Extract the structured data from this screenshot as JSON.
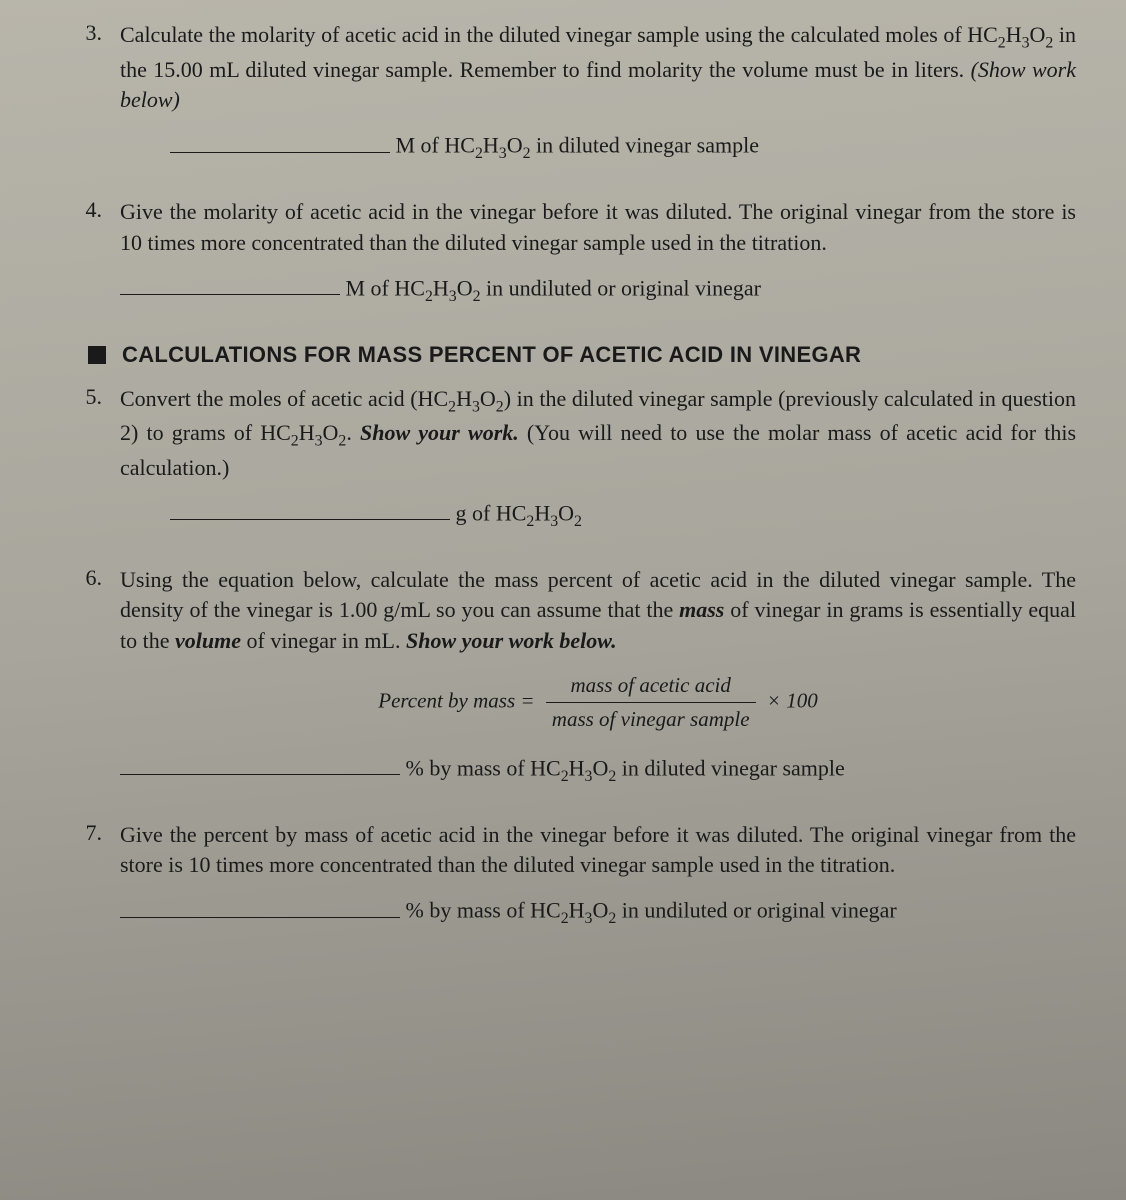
{
  "background_color": "#b0ada3",
  "text_color": "#1a1a1a",
  "body_font": "Minion Pro, Georgia, serif",
  "heading_font": "Helvetica Neue, Arial, sans-serif",
  "body_fontsize": 22,
  "q3": {
    "num": "3.",
    "text_a": "Calculate the molarity of acetic acid in the diluted vinegar sample using the calculated moles of HC",
    "text_b": " in the 15.00 mL diluted vinegar sample. Remember to find molarity the volume must be in liters. ",
    "show_work": "(Show work below)",
    "answer_label_a": " M of HC",
    "answer_label_b": " in diluted vinegar sample"
  },
  "q4": {
    "num": "4.",
    "text": "Give the molarity of acetic acid in the vinegar before it was diluted. The original vinegar from the store is 10 times more concentrated than the diluted vinegar sample used in the titration.",
    "answer_label_a": " M of HC",
    "answer_label_b": " in undiluted or original vinegar"
  },
  "section": {
    "title": "CALCULATIONS FOR MASS PERCENT OF ACETIC ACID IN VINEGAR"
  },
  "q5": {
    "num": "5.",
    "text_a": "Convert the moles of acetic acid (HC",
    "text_b": ") in the diluted vinegar sample (previously calculated in question 2) to grams of HC",
    "text_c": ". ",
    "show_work": "Show your work.",
    "text_d": " (You will need to use the molar mass of acetic acid for this calculation.)",
    "answer_label_a": " g of HC"
  },
  "q6": {
    "num": "6.",
    "text_a": "Using the equation below, calculate the mass percent of acetic acid in the diluted vinegar sample. The density of the vinegar is 1.00 g/mL so you can assume that the ",
    "mass_word": "mass",
    "text_b": " of vinegar in grams is essentially equal to the ",
    "volume_word": "volume",
    "text_c": " of vinegar in mL. ",
    "show_work": "Show your work below.",
    "formula_lhs": "Percent by mass =",
    "formula_num": "mass of acetic acid",
    "formula_den": "mass of vinegar sample",
    "formula_times": "× 100",
    "answer_label_a": " % by mass of HC",
    "answer_label_b": " in diluted vinegar sample"
  },
  "q7": {
    "num": "7.",
    "text": "Give the percent by mass of acetic acid in the vinegar before it was diluted. The original vinegar from the store is 10 times more concentrated than the diluted vinegar sample used in the titration.",
    "answer_label_a": " % by mass of HC",
    "answer_label_b": " in undiluted or original vinegar"
  },
  "formula": "HC₂H₃O₂",
  "sub_2": "2",
  "sub_3": "3"
}
